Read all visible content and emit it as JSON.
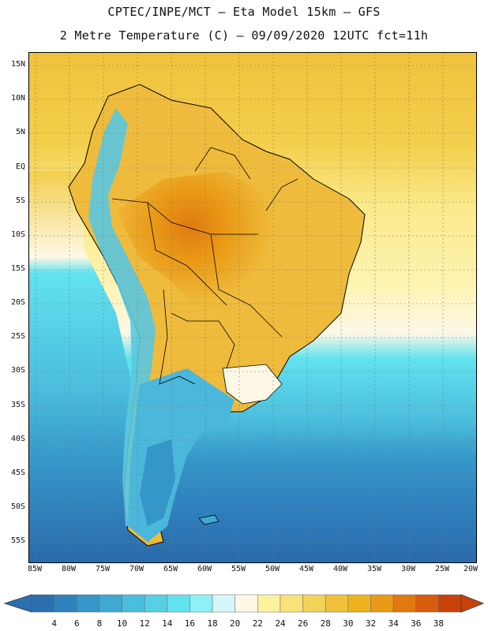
{
  "title": {
    "line1": "CPTEC/INPE/MCT –  Eta Model 15km – GFS",
    "line2": "2 Metre Temperature (C) – 09/09/2020 12UTC fct=11h"
  },
  "lat_labels": [
    "15N",
    "10N",
    "5N",
    "EQ",
    "5S",
    "10S",
    "15S",
    "20S",
    "25S",
    "30S",
    "35S",
    "40S",
    "45S",
    "50S",
    "55S"
  ],
  "lon_labels": [
    "85W",
    "80W",
    "75W",
    "70W",
    "65W",
    "60W",
    "55W",
    "50W",
    "45W",
    "40W",
    "35W",
    "30W",
    "25W",
    "20W"
  ],
  "legend": {
    "values": [
      "4",
      "6",
      "8",
      "10",
      "12",
      "14",
      "16",
      "18",
      "20",
      "22",
      "24",
      "26",
      "28",
      "30",
      "32",
      "34",
      "36",
      "38"
    ],
    "colors": [
      "#2a6fb0",
      "#2f82be",
      "#3596c8",
      "#3fa9d3",
      "#4bbedd",
      "#57d0e6",
      "#62e2ef",
      "#8ef1f6",
      "#d6f7fa",
      "#fdf8e6",
      "#fdf2a0",
      "#f8e27a",
      "#f3d25a",
      "#efc23d",
      "#eeb21c",
      "#e99a16",
      "#e07a10",
      "#d85c0c",
      "#c9420a"
    ]
  },
  "colors": {
    "ocean_north": "#f3cf4c",
    "ocean_mid": "#fbeea0",
    "ocean_south_warm": "#62e2ef",
    "ocean_south_cool": "#3fa9d3",
    "ocean_deep": "#2f6fb0",
    "land_hot": "#e39a1c",
    "land_warm": "#efbb3c",
    "andes": "#5ac8e0",
    "patagonia": "#4ab7db"
  }
}
